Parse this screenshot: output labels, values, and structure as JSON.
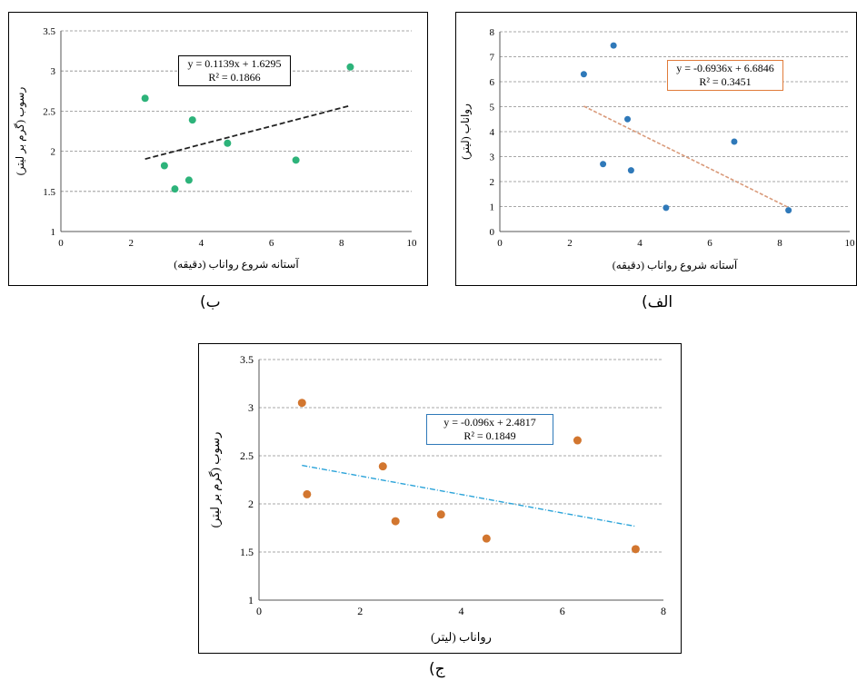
{
  "chart_data": [
    {
      "id": "b",
      "type": "scatter",
      "caption": "ب)",
      "xlabel": "آستانه شروع رواناب (دقیقه)",
      "ylabel": "رسوب (گرم بر لیتر)",
      "xlim": [
        0,
        10
      ],
      "ylim": [
        1,
        3.5
      ],
      "xticks": [
        0,
        2,
        4,
        6,
        8,
        10
      ],
      "yticks": [
        1,
        1.5,
        2,
        2.5,
        3,
        3.5
      ],
      "grid": true,
      "colors": {
        "marker": "#2db37a",
        "trendline": "#222222",
        "box_border": "#000000"
      },
      "points": [
        {
          "x": 2.4,
          "y": 2.66
        },
        {
          "x": 2.95,
          "y": 1.82
        },
        {
          "x": 3.25,
          "y": 1.53
        },
        {
          "x": 3.65,
          "y": 1.64
        },
        {
          "x": 3.75,
          "y": 2.39
        },
        {
          "x": 4.75,
          "y": 2.1
        },
        {
          "x": 6.7,
          "y": 1.89
        },
        {
          "x": 8.25,
          "y": 3.05
        }
      ],
      "trendline": {
        "slope": 0.1139,
        "intercept": 1.6295,
        "x_range": [
          2.4,
          8.25
        ]
      },
      "equation": "y = 0.1139x + 1.6295",
      "r2": "R² = 0.1866"
    },
    {
      "id": "alef",
      "type": "scatter",
      "caption": "الف)",
      "xlabel": "آستانه شروع رواناب (دقیقه)",
      "ylabel": "رواناب (لیتر)",
      "xlim": [
        0,
        10
      ],
      "ylim": [
        0,
        8
      ],
      "xticks": [
        0,
        2,
        4,
        6,
        8,
        10
      ],
      "yticks": [
        0,
        1,
        2,
        3,
        4,
        5,
        6,
        7,
        8
      ],
      "grid": true,
      "colors": {
        "marker": "#2f79b9",
        "trendline": "#d99a7a",
        "box_border": "#e07b3a"
      },
      "points": [
        {
          "x": 2.4,
          "y": 6.3
        },
        {
          "x": 2.95,
          "y": 2.7
        },
        {
          "x": 3.25,
          "y": 7.45
        },
        {
          "x": 3.65,
          "y": 4.5
        },
        {
          "x": 3.75,
          "y": 2.45
        },
        {
          "x": 4.75,
          "y": 0.95
        },
        {
          "x": 6.7,
          "y": 3.6
        },
        {
          "x": 8.25,
          "y": 0.85
        }
      ],
      "trendline": {
        "slope": -0.6936,
        "intercept": 6.6846,
        "x_range": [
          2.4,
          8.25
        ]
      },
      "equation": "y = -0.6936x + 6.6846",
      "r2": "R² = 0.3451"
    },
    {
      "id": "jim",
      "type": "scatter",
      "caption": "ج)",
      "xlabel": "رواناب (لیتر)",
      "ylabel": "رسوب (گرم بر لیتر)",
      "xlim": [
        0,
        8
      ],
      "ylim": [
        1,
        3.5
      ],
      "xticks": [
        0,
        2,
        4,
        6,
        8
      ],
      "yticks": [
        1,
        1.5,
        2,
        2.5,
        3,
        3.5
      ],
      "grid": true,
      "colors": {
        "marker": "#d2762f",
        "trendline": "#2aa3d9",
        "box_border": "#2f79b9"
      },
      "points": [
        {
          "x": 0.85,
          "y": 3.05
        },
        {
          "x": 0.95,
          "y": 2.1
        },
        {
          "x": 2.45,
          "y": 2.39
        },
        {
          "x": 2.7,
          "y": 1.82
        },
        {
          "x": 3.6,
          "y": 1.89
        },
        {
          "x": 4.5,
          "y": 1.64
        },
        {
          "x": 6.3,
          "y": 2.66
        },
        {
          "x": 7.45,
          "y": 1.53
        }
      ],
      "trendline": {
        "slope": -0.096,
        "intercept": 2.4817,
        "x_range": [
          0.85,
          7.45
        ]
      },
      "equation": "y = -0.096x + 2.4817",
      "r2": "R² = 0.1849"
    }
  ]
}
